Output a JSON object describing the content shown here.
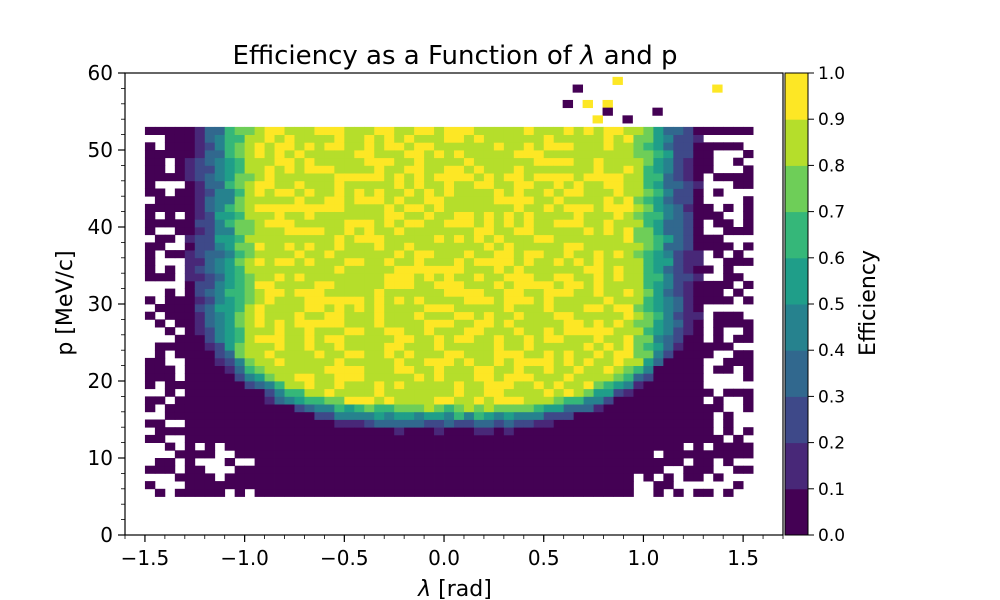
{
  "chart_data": {
    "type": "heatmap",
    "title_parts": [
      "Efficiency as a Function of ",
      "λ",
      " and p"
    ],
    "xlabel_parts": [
      "λ",
      " [rad]"
    ],
    "ylabel": "p [MeV/c]",
    "xlim": [
      -1.6,
      1.7
    ],
    "ylim": [
      0,
      60
    ],
    "x_ticks": [
      "−1.5",
      "−1.0",
      "−0.5",
      "0.0",
      "0.5",
      "1.0",
      "1.5"
    ],
    "y_ticks": [
      "0",
      "10",
      "20",
      "30",
      "40",
      "50",
      "60"
    ],
    "x_bin_width": 0.05,
    "y_bin_width": 1,
    "populated_lambda_range": [
      -1.5,
      1.55
    ],
    "populated_p_range": [
      5,
      53
    ],
    "colormap": "viridis",
    "colors": [
      "#440154",
      "#482878",
      "#3e4989",
      "#31688e",
      "#26828e",
      "#1f9e89",
      "#35b779",
      "#6ece58",
      "#b5de2b",
      "#fde725"
    ],
    "colorbar": {
      "label": "Efficiency",
      "range": [
        0,
        1
      ],
      "levels": [
        0.0,
        0.1,
        0.2,
        0.3,
        0.4,
        0.5,
        0.6,
        0.7,
        0.8,
        0.9,
        1.0
      ],
      "tick_labels": [
        "0.0",
        "0.1",
        "0.2",
        "0.3",
        "0.4",
        "0.5",
        "0.6",
        "0.7",
        "0.8",
        "0.9",
        "1.0"
      ]
    },
    "structure": {
      "efficiency_low_below_p": 13,
      "efficiency_high_region": "central |λ| < ~0.9, p 15–53 MeV/c, efficiency ≈ 0.8–1.0",
      "edges": "efficiency falls to ~0 for |λ| > ~1.25 and for p < ~13 MeV/c"
    }
  }
}
